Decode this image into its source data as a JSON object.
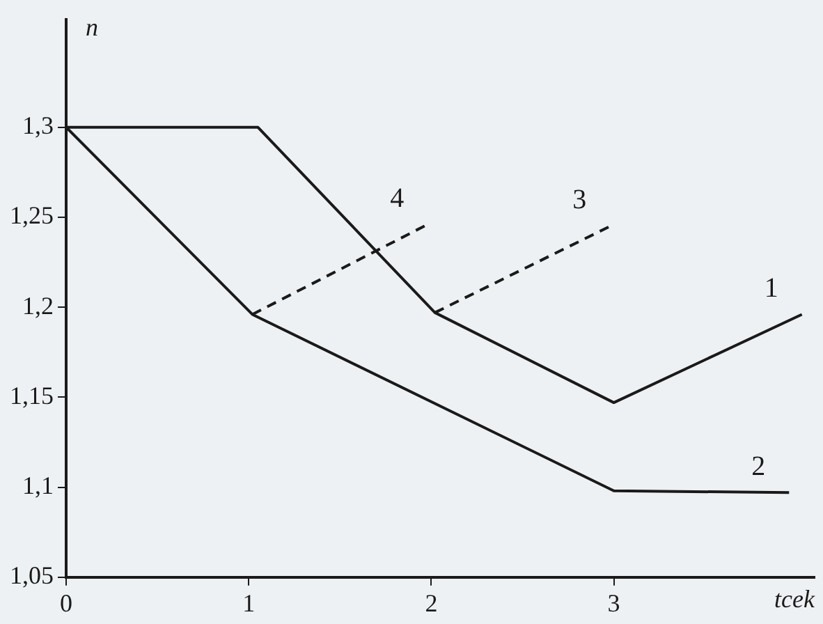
{
  "chart_data": {
    "type": "line",
    "xlabel": "tcek",
    "ylabel": "n",
    "xlim": [
      0,
      4.1
    ],
    "xticks": [
      0,
      1,
      2,
      3
    ],
    "ylim": [
      1.05,
      1.36
    ],
    "yticks": [
      {
        "value": 1.05,
        "label": "1,05"
      },
      {
        "value": 1.1,
        "label": "1,1"
      },
      {
        "value": 1.15,
        "label": "1,15"
      },
      {
        "value": 1.2,
        "label": "1,2"
      },
      {
        "value": 1.25,
        "label": "1,25"
      },
      {
        "value": 1.3,
        "label": "1,3"
      }
    ],
    "grid": false,
    "legend": false,
    "marker": "none",
    "series": [
      {
        "name": "1",
        "color": "#1a1a1a",
        "line_style": "solid",
        "x": [
          0,
          1.05,
          2.02,
          3.0,
          4.03
        ],
        "values": [
          1.3,
          1.3,
          1.197,
          1.147,
          1.196
        ]
      },
      {
        "name": "2",
        "color": "#1a1a1a",
        "line_style": "solid",
        "x": [
          0,
          1.02,
          3.0,
          3.96
        ],
        "values": [
          1.3,
          1.196,
          1.098,
          1.097
        ]
      },
      {
        "name": "3",
        "color": "#1a1a1a",
        "line_style": "dashed",
        "x": [
          2.02,
          2.98
        ],
        "values": [
          1.197,
          1.245
        ]
      },
      {
        "name": "4",
        "color": "#1a1a1a",
        "line_style": "dashed",
        "x": [
          1.02,
          1.98
        ],
        "values": [
          1.196,
          1.246
        ]
      }
    ]
  }
}
